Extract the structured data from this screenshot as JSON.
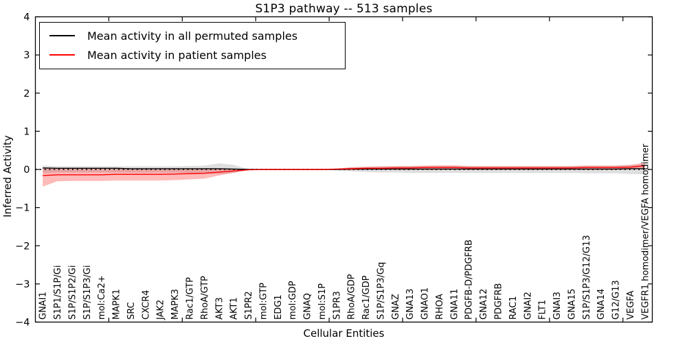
{
  "title": "S1P3 pathway -- 513 samples",
  "axes": {
    "ylabel": "Inferred Activity",
    "xlabel": "Cellular Entities"
  },
  "legend": {
    "entries": [
      {
        "label": "Mean activity in all permuted samples",
        "color": "#000000"
      },
      {
        "label": "Mean activity in patient samples",
        "color": "#ff0000"
      }
    ],
    "position": "upper left"
  },
  "chart_data": {
    "type": "line",
    "title": "S1P3 pathway -- 513 samples",
    "xlabel": "Cellular Entities",
    "ylabel": "Inferred Activity",
    "ylim": [
      -4,
      4
    ],
    "y_ticks": [
      4,
      3,
      2,
      1,
      0,
      -1,
      -2,
      -3,
      -4
    ],
    "x_tick_interval": 5,
    "grid": false,
    "legend_position": "upper left",
    "zero_line": {
      "style": "dotted",
      "color": "#000000",
      "y": 0
    },
    "categories": [
      "GNAI1",
      "S1P1/S1P/Gi",
      "S1P/S1P2/Gi",
      "S1P/S1P3/Gi",
      "mol:Ca2+",
      "MAPK1",
      "SRC",
      "CXCR4",
      "JAK2",
      "MAPK3",
      "Rac1/GTP",
      "RhoA/GTP",
      "AKT3",
      "AKT1",
      "S1PR2",
      "mol:GTP",
      "EDG1",
      "mol:GDP",
      "GNAQ",
      "mol:S1P",
      "S1PR3",
      "RhoA/GDP",
      "Rac1/GDP",
      "S1P/S1P3/Gq",
      "GNAZ",
      "GNA13",
      "GNAO1",
      "RHOA",
      "GNA11",
      "PDGFB-D/PDGFRB",
      "GNA12",
      "PDGFRB",
      "RAC1",
      "GNAI2",
      "FLT1",
      "GNAI3",
      "GNA15",
      "S1P/S1P3/G12/G13",
      "GNA14",
      "G12/G13",
      "VEGFA",
      "VEGFR1 homodimer/VEGFA homodimer"
    ],
    "series": [
      {
        "name": "Mean activity in all permuted samples",
        "color": "#000000",
        "line_width": 1.4,
        "band_color": "#999999",
        "band_opacity": 0.32,
        "values": [
          0.04,
          0.03,
          0.03,
          0.03,
          0.03,
          0.03,
          0.02,
          0.02,
          0.02,
          0.02,
          0.02,
          0.02,
          0.02,
          0.01,
          0.0,
          0.0,
          0.0,
          0.0,
          0.0,
          0.0,
          0.0,
          0.01,
          0.01,
          0.01,
          0.01,
          0.01,
          0.01,
          0.01,
          0.01,
          0.01,
          0.01,
          0.01,
          0.01,
          0.01,
          0.01,
          0.01,
          0.01,
          0.01,
          0.01,
          0.01,
          0.02,
          0.02
        ],
        "band_upper": [
          0.1,
          0.08,
          0.08,
          0.08,
          0.08,
          0.08,
          0.08,
          0.08,
          0.08,
          0.08,
          0.09,
          0.1,
          0.16,
          0.12,
          0.01,
          0.01,
          0.01,
          0.01,
          0.01,
          0.01,
          0.02,
          0.05,
          0.07,
          0.08,
          0.08,
          0.09,
          0.09,
          0.09,
          0.09,
          0.09,
          0.09,
          0.09,
          0.09,
          0.09,
          0.09,
          0.09,
          0.09,
          0.1,
          0.1,
          0.1,
          0.12,
          0.12
        ],
        "band_lower": [
          -0.1,
          -0.08,
          -0.08,
          -0.08,
          -0.08,
          -0.08,
          -0.08,
          -0.08,
          -0.08,
          -0.08,
          -0.09,
          -0.1,
          -0.12,
          -0.09,
          -0.01,
          -0.01,
          -0.01,
          -0.01,
          -0.01,
          -0.01,
          -0.02,
          -0.05,
          -0.07,
          -0.08,
          -0.08,
          -0.09,
          -0.09,
          -0.09,
          -0.09,
          -0.09,
          -0.09,
          -0.09,
          -0.09,
          -0.09,
          -0.09,
          -0.09,
          -0.09,
          -0.1,
          -0.1,
          -0.1,
          -0.12,
          -0.13
        ]
      },
      {
        "name": "Mean activity in patient samples",
        "color": "#ff0000",
        "line_width": 1.4,
        "band_color": "#ff0000",
        "band_opacity": 0.27,
        "values": [
          -0.16,
          -0.14,
          -0.14,
          -0.14,
          -0.14,
          -0.13,
          -0.13,
          -0.13,
          -0.13,
          -0.12,
          -0.11,
          -0.1,
          -0.07,
          -0.04,
          -0.01,
          0.0,
          0.0,
          0.0,
          0.0,
          0.0,
          0.01,
          0.02,
          0.03,
          0.03,
          0.04,
          0.04,
          0.05,
          0.05,
          0.05,
          0.04,
          0.04,
          0.04,
          0.04,
          0.04,
          0.04,
          0.04,
          0.04,
          0.05,
          0.05,
          0.05,
          0.06,
          0.1
        ],
        "band_upper": [
          0.05,
          0.02,
          0.02,
          0.02,
          0.02,
          0.02,
          0.02,
          0.02,
          0.02,
          0.02,
          0.02,
          0.02,
          0.02,
          0.01,
          0.0,
          0.01,
          0.01,
          0.01,
          0.01,
          0.01,
          0.02,
          0.06,
          0.07,
          0.08,
          0.09,
          0.09,
          0.1,
          0.11,
          0.11,
          0.09,
          0.09,
          0.09,
          0.09,
          0.09,
          0.09,
          0.09,
          0.09,
          0.1,
          0.1,
          0.1,
          0.12,
          0.18
        ],
        "band_lower": [
          -0.45,
          -0.31,
          -0.3,
          -0.3,
          -0.3,
          -0.29,
          -0.29,
          -0.29,
          -0.29,
          -0.28,
          -0.26,
          -0.24,
          -0.16,
          -0.09,
          -0.02,
          -0.01,
          -0.01,
          -0.01,
          -0.01,
          -0.01,
          -0.01,
          -0.02,
          -0.01,
          -0.01,
          -0.01,
          -0.01,
          -0.01,
          -0.01,
          -0.01,
          -0.01,
          -0.01,
          -0.01,
          -0.01,
          -0.01,
          -0.01,
          -0.01,
          -0.01,
          -0.01,
          -0.01,
          -0.01,
          0.0,
          0.02
        ]
      }
    ]
  }
}
